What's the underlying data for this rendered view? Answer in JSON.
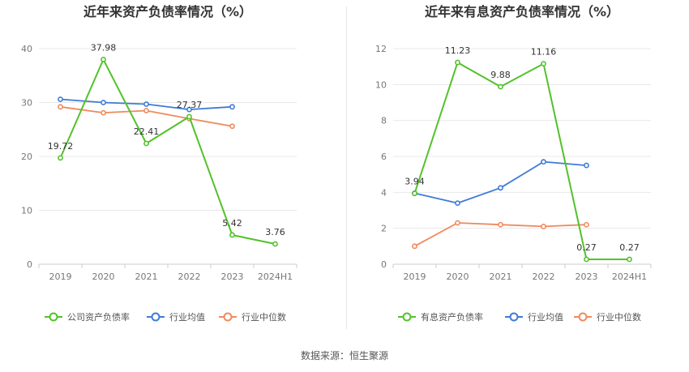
{
  "footer": {
    "source": "数据来源：恒生聚源"
  },
  "chart_data": [
    {
      "type": "line",
      "title": "近年来资产负债率情况（%）",
      "categories": [
        "2019",
        "2020",
        "2021",
        "2022",
        "2023",
        "2024H1"
      ],
      "yticks": [
        "0",
        "10",
        "20",
        "30",
        "40"
      ],
      "ylim": [
        0,
        40
      ],
      "grid": true,
      "legend_position": "bottom",
      "series": [
        {
          "name": "公司资产负债率",
          "color": "#52c22a",
          "values": [
            19.72,
            37.98,
            22.41,
            27.37,
            5.42,
            3.76
          ],
          "labels": [
            "19.72",
            "37.98",
            "22.41",
            "27.37",
            "5.42",
            "3.76"
          ]
        },
        {
          "name": "行业均值",
          "color": "#3f7bd6",
          "values": [
            30.6,
            30.0,
            29.7,
            28.7,
            29.2,
            null
          ]
        },
        {
          "name": "行业中位数",
          "color": "#ef8a5d",
          "values": [
            29.2,
            28.1,
            28.5,
            27.0,
            25.6,
            null
          ]
        }
      ]
    },
    {
      "type": "line",
      "title": "近年来有息资产负债率情况（%）",
      "categories": [
        "2019",
        "2020",
        "2021",
        "2022",
        "2023",
        "2024H1"
      ],
      "yticks": [
        "0",
        "2",
        "4",
        "6",
        "8",
        "10",
        "12"
      ],
      "ylim": [
        0,
        12
      ],
      "grid": true,
      "legend_position": "bottom",
      "series": [
        {
          "name": "有息资产负债率",
          "color": "#52c22a",
          "values": [
            3.94,
            11.23,
            9.88,
            11.16,
            0.27,
            0.27
          ],
          "labels": [
            "3.94",
            "11.23",
            "9.88",
            "11.16",
            "0.27",
            "0.27"
          ]
        },
        {
          "name": "行业均值",
          "color": "#3f7bd6",
          "values": [
            3.95,
            3.4,
            4.25,
            5.7,
            5.5,
            null
          ]
        },
        {
          "name": "行业中位数",
          "color": "#ef8a5d",
          "values": [
            1.0,
            2.3,
            2.2,
            2.1,
            2.2,
            null
          ]
        }
      ]
    }
  ]
}
